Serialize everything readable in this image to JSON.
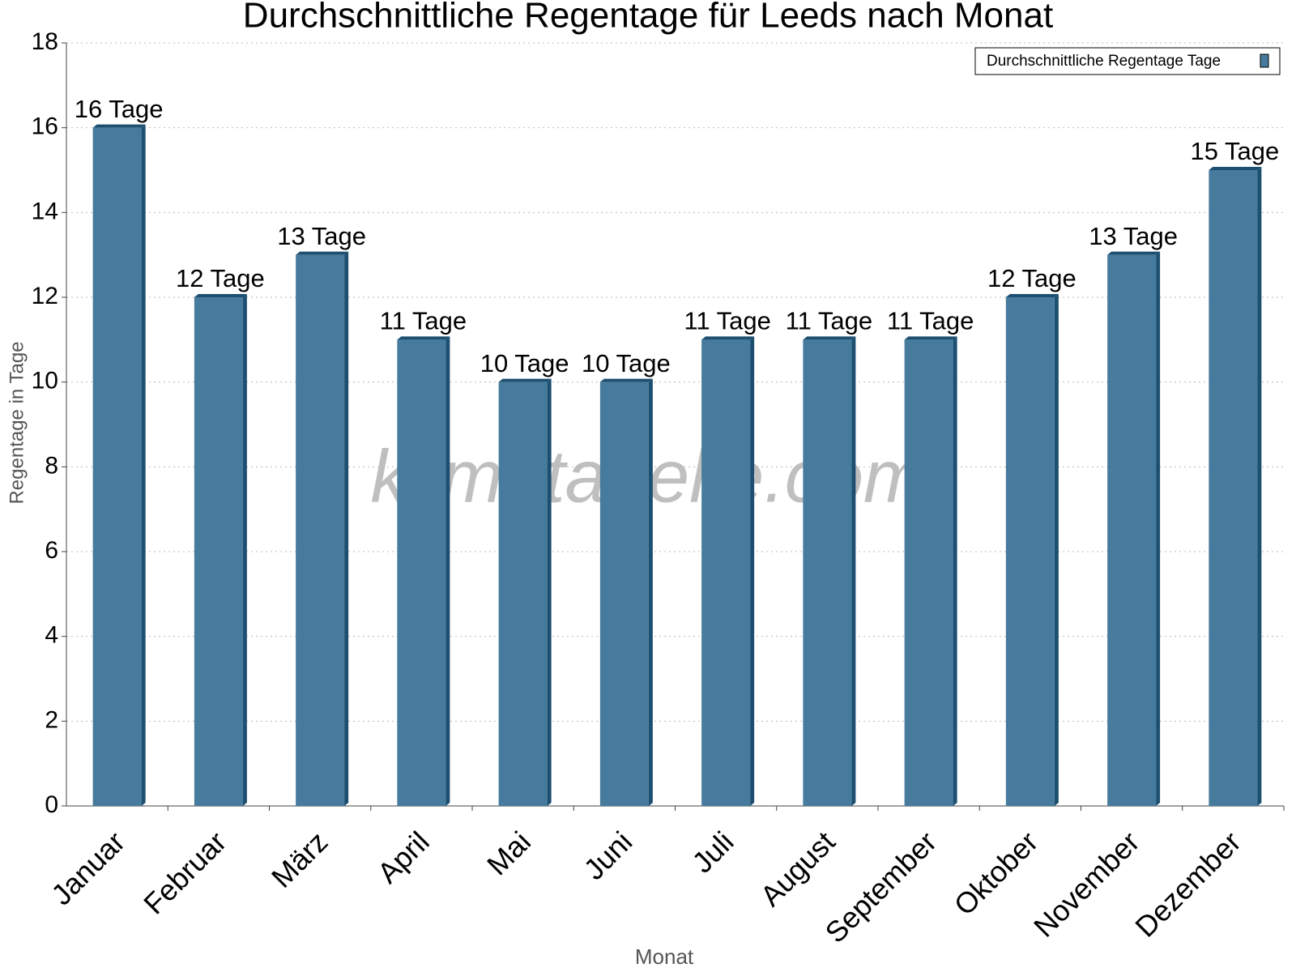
{
  "chart_data": {
    "type": "bar",
    "title": "Durchschnittliche Regentage für Leeds nach Monat",
    "x_label": "Monat",
    "y_label": "Regentage in Tage",
    "watermark": "klimatabelle.com",
    "categories": [
      "Januar",
      "Februar",
      "März",
      "April",
      "Mai",
      "Juni",
      "Juli",
      "August",
      "September",
      "Oktober",
      "November",
      "Dezember"
    ],
    "series": [
      {
        "name": "Durchschnittliche Regentage Tage",
        "color": "#467b9d",
        "values": [
          16,
          12,
          13,
          11,
          10,
          10,
          11,
          11,
          11,
          12,
          13,
          15
        ],
        "value_labels": [
          "16 Tage",
          "12 Tage",
          "13 Tage",
          "11 Tage",
          "10 Tage",
          "10 Tage",
          "11 Tage",
          "11 Tage",
          "11 Tage",
          "12 Tage",
          "13 Tage",
          "15 Tage"
        ]
      }
    ],
    "ylim": [
      0,
      18
    ],
    "yticks": [
      0,
      2,
      4,
      6,
      8,
      10,
      12,
      14,
      16,
      18
    ],
    "grid": true,
    "legend": "top-right"
  }
}
